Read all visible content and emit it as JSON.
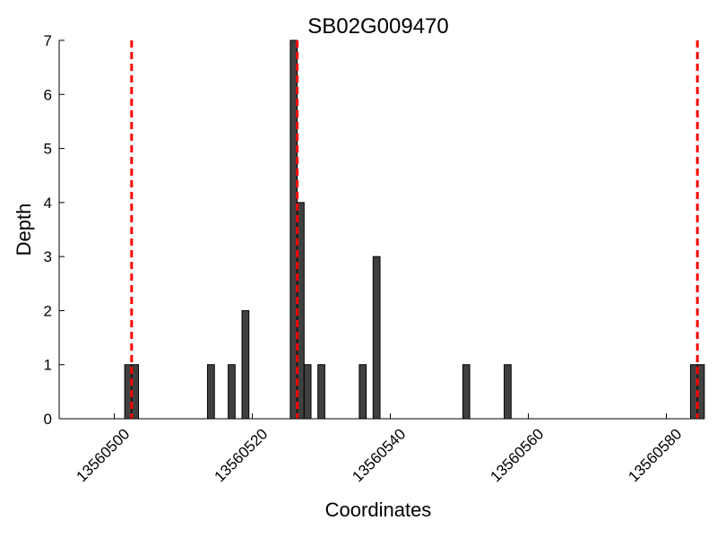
{
  "chart_data": {
    "type": "bar",
    "title": "SB02G009470",
    "xlabel": "Coordinates",
    "ylabel": "Depth",
    "xlim": [
      13560492,
      13560585
    ],
    "ylim": [
      0,
      7
    ],
    "bar_width": 1,
    "x_ticks": [
      {
        "value": 13560500,
        "label": "13560500"
      },
      {
        "value": 13560520,
        "label": "13560520"
      },
      {
        "value": 13560540,
        "label": "13560540"
      },
      {
        "value": 13560560,
        "label": "13560560"
      },
      {
        "value": 13560580,
        "label": "13560580"
      }
    ],
    "y_ticks": [
      {
        "value": 0,
        "label": "0"
      },
      {
        "value": 1,
        "label": "1"
      },
      {
        "value": 2,
        "label": "2"
      },
      {
        "value": 3,
        "label": "3"
      },
      {
        "value": 4,
        "label": "4"
      },
      {
        "value": 5,
        "label": "5"
      },
      {
        "value": 6,
        "label": "6"
      },
      {
        "value": 7,
        "label": "7"
      }
    ],
    "bars": [
      {
        "x": 13560502,
        "depth": 1
      },
      {
        "x": 13560503,
        "depth": 1
      },
      {
        "x": 13560514,
        "depth": 1
      },
      {
        "x": 13560517,
        "depth": 1
      },
      {
        "x": 13560519,
        "depth": 2
      },
      {
        "x": 13560526,
        "depth": 7
      },
      {
        "x": 13560527,
        "depth": 4
      },
      {
        "x": 13560528,
        "depth": 1
      },
      {
        "x": 13560530,
        "depth": 1
      },
      {
        "x": 13560536,
        "depth": 1
      },
      {
        "x": 13560538,
        "depth": 3
      },
      {
        "x": 13560551,
        "depth": 1
      },
      {
        "x": 13560557,
        "depth": 1
      },
      {
        "x": 13560584,
        "depth": 1
      },
      {
        "x": 13560585,
        "depth": 1
      }
    ],
    "markers": [
      {
        "x": 13560502.5,
        "style": "dashed",
        "color": "#ff0000"
      },
      {
        "x": 13560526.5,
        "style": "dashed",
        "color": "#ff0000"
      },
      {
        "x": 13560584.5,
        "style": "dashed",
        "color": "#ff0000"
      }
    ],
    "bar_color": "#404040",
    "bar_edge_color": "#000000",
    "grid": false,
    "legend": "none"
  }
}
